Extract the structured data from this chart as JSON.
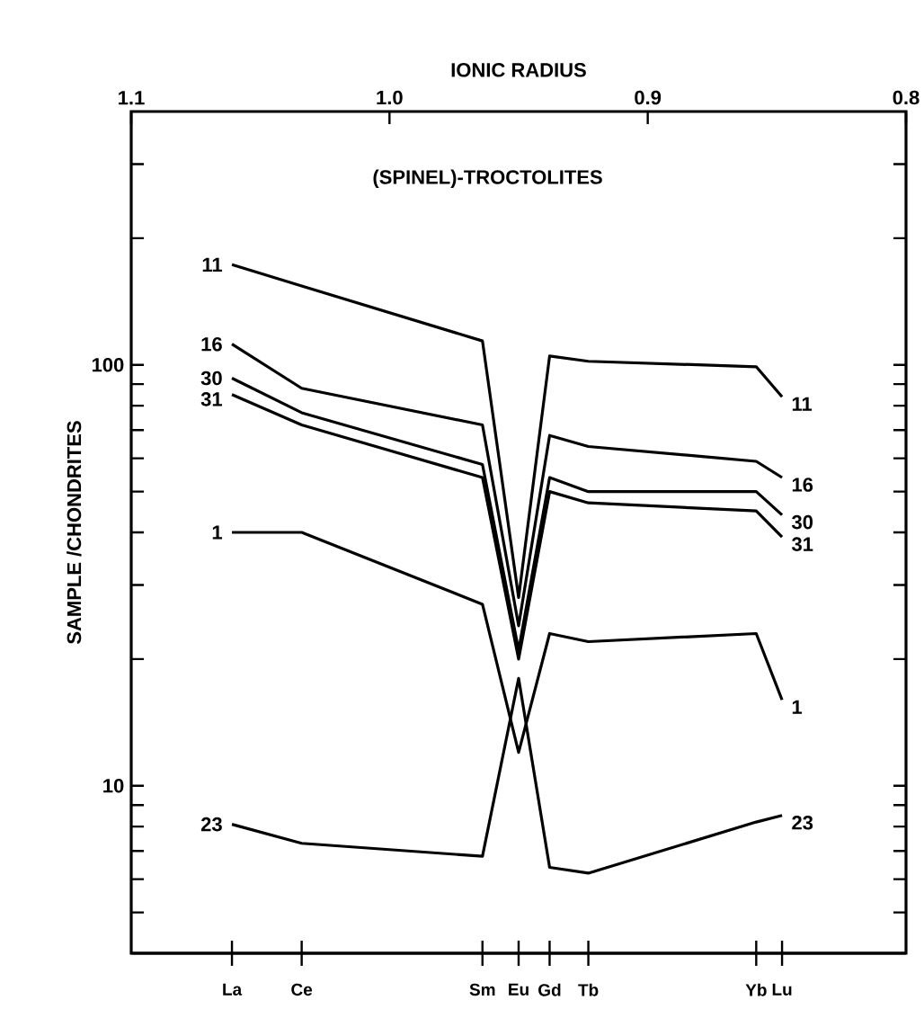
{
  "chart_data": {
    "type": "line",
    "title": "(SPINEL)-TROCTOLITES",
    "ylabel": "SAMPLE /CHONDRITES",
    "xlabel": "IONIC RADIUS",
    "x": [
      1.061,
      1.034,
      0.964,
      0.95,
      0.938,
      0.923,
      0.858,
      0.848
    ],
    "xlim": [
      1.1,
      0.8
    ],
    "xticks": [
      {
        "value": 1.1,
        "label": "1.1"
      },
      {
        "value": 1.0,
        "label": "1.0"
      },
      {
        "value": 0.9,
        "label": "0.9"
      },
      {
        "value": 0.8,
        "label": "0.8"
      }
    ],
    "annotations": [
      {
        "text": "La",
        "x": 1.061
      },
      {
        "text": "Ce",
        "x": 1.034
      },
      {
        "text": "Sm",
        "x": 0.964
      },
      {
        "text": "Eu",
        "x": 0.95
      },
      {
        "text": "Gd",
        "x": 0.938
      },
      {
        "text": "Tb",
        "x": 0.923
      },
      {
        "text": "Yb",
        "x": 0.858
      },
      {
        "text": "Lu",
        "x": 0.848
      }
    ],
    "ylim": [
      4,
      400
    ],
    "log": "y",
    "yticks": [
      {
        "value": 5,
        "label": null
      },
      {
        "value": 6,
        "label": null
      },
      {
        "value": 7,
        "label": null
      },
      {
        "value": 8,
        "label": null
      },
      {
        "value": 9,
        "label": null
      },
      10,
      {
        "value": 20,
        "label": null
      },
      {
        "value": 30,
        "label": null
      },
      {
        "value": 40,
        "label": null
      },
      {
        "value": 50,
        "label": null
      },
      {
        "value": 60,
        "label": null
      },
      {
        "value": 70,
        "label": null
      },
      {
        "value": 80,
        "label": null
      },
      {
        "value": 90,
        "label": null
      },
      100,
      {
        "value": 200,
        "label": null
      },
      {
        "value": 300,
        "label": null
      }
    ],
    "marker": "none",
    "line_style": "solid",
    "series": [
      {
        "name": "11",
        "color": "#000000",
        "values": [
          173,
          154,
          114,
          28,
          105,
          102,
          99,
          84
        ]
      },
      {
        "name": "16",
        "color": "#000000",
        "values": [
          112,
          88,
          72,
          24,
          68,
          64,
          59,
          54
        ]
      },
      {
        "name": "30",
        "color": "#000000",
        "values": [
          93,
          77,
          58,
          21,
          54,
          50,
          50,
          44
        ]
      },
      {
        "name": "31",
        "color": "#000000",
        "values": [
          85,
          72,
          54,
          20,
          50,
          47,
          45,
          39
        ]
      },
      {
        "name": "1",
        "color": "#000000",
        "values": [
          40,
          40,
          27,
          12,
          23,
          22,
          23,
          16
        ]
      },
      {
        "name": "23",
        "color": "#000000",
        "values": [
          8.1,
          7.3,
          6.8,
          18,
          6.4,
          6.2,
          8.2,
          8.5
        ]
      }
    ]
  }
}
